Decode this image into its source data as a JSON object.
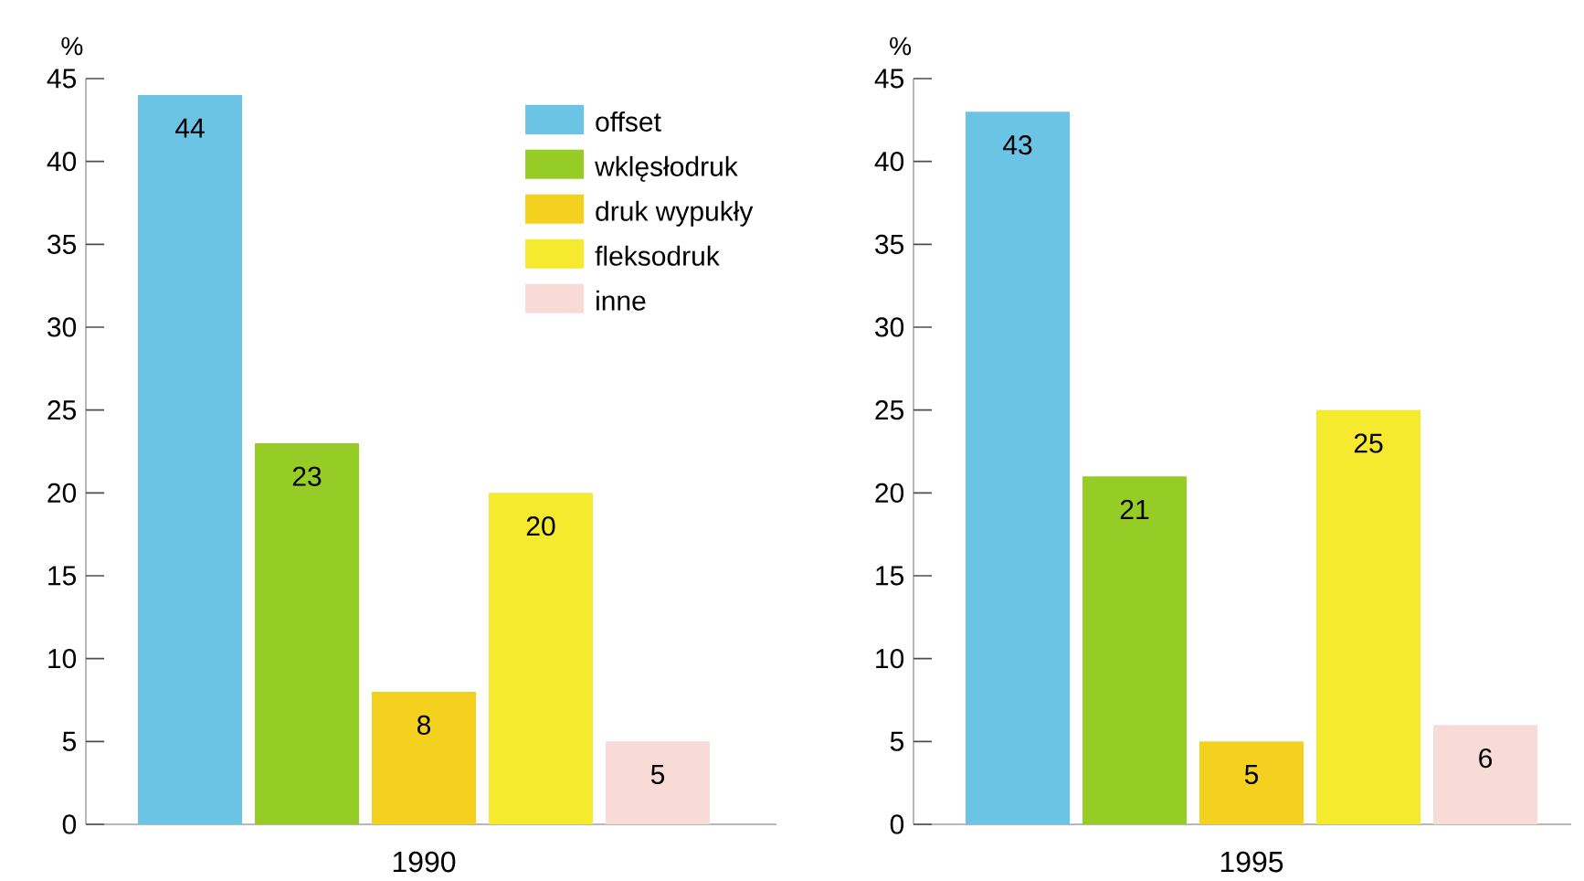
{
  "chart_data": [
    {
      "type": "bar",
      "ylabel": "%",
      "categories": [
        "1990"
      ],
      "ylim": [
        0,
        45
      ],
      "yticks": [
        0,
        5,
        10,
        15,
        20,
        25,
        30,
        35,
        40,
        45
      ],
      "data_labels": true,
      "legend": "top right",
      "grid": false,
      "series": [
        {
          "name": "offset",
          "color": "#6cc4e5",
          "values": [
            44
          ]
        },
        {
          "name": "wklęsłodruk",
          "color": "#96cc26",
          "values": [
            23
          ]
        },
        {
          "name": "druk wypukły",
          "color": "#f4d11e",
          "values": [
            8
          ]
        },
        {
          "name": "fleksodruk",
          "color": "#f5ea2e",
          "values": [
            20
          ]
        },
        {
          "name": "inne",
          "color": "#f8dad6",
          "values": [
            5
          ]
        }
      ]
    },
    {
      "type": "bar",
      "ylabel": "%",
      "categories": [
        "1995"
      ],
      "ylim": [
        0,
        45
      ],
      "yticks": [
        0,
        5,
        10,
        15,
        20,
        25,
        30,
        35,
        40,
        45
      ],
      "data_labels": true,
      "grid": false,
      "series": [
        {
          "color": "#6cc4e5",
          "values": [
            43
          ]
        },
        {
          "color": "#96cc26",
          "values": [
            21
          ]
        },
        {
          "color": "#f4d11e",
          "values": [
            5
          ]
        },
        {
          "color": "#f5ea2e",
          "values": [
            25
          ]
        },
        {
          "color": "#f8dad6",
          "values": [
            6
          ]
        }
      ]
    }
  ]
}
